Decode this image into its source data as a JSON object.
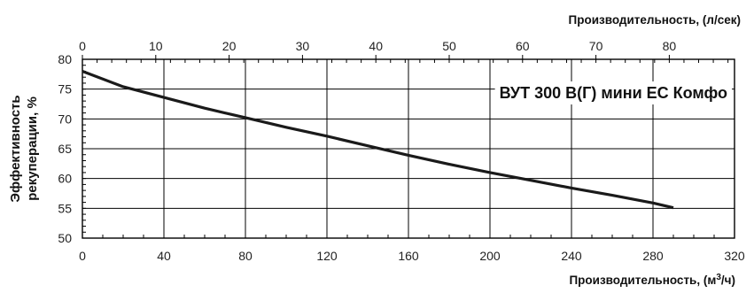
{
  "chart_data": {
    "type": "line",
    "title": "ВУТ 300 В(Г) мини ЕС Комфо",
    "xlabel_prefix": "Производительность, (м",
    "xlabel_sup": "3",
    "xlabel_suffix": "/ч)",
    "x2label": "Производительность, (л/сек)",
    "ylabel_line1": "Эффективность",
    "ylabel_line2": "рекуперации, %",
    "xlim": [
      0,
      320
    ],
    "x2lim": [
      0,
      88.89
    ],
    "ylim": [
      50,
      80
    ],
    "x_ticks": [
      "0",
      "40",
      "80",
      "120",
      "160",
      "200",
      "240",
      "280",
      "320"
    ],
    "x2_ticks": [
      "0",
      "10",
      "20",
      "30",
      "40",
      "50",
      "60",
      "70",
      "80"
    ],
    "y_ticks": [
      "50",
      "55",
      "60",
      "65",
      "70",
      "75",
      "80"
    ],
    "grid": true,
    "series": [
      {
        "x": [
          0,
          20,
          40,
          60,
          80,
          100,
          120,
          140,
          160,
          180,
          200,
          220,
          240,
          260,
          280,
          290
        ],
        "y": [
          78,
          75.4,
          73.6,
          71.8,
          70.2,
          68.6,
          67.1,
          65.5,
          63.9,
          62.4,
          61.0,
          59.7,
          58.4,
          57.2,
          55.9,
          55.1
        ],
        "color": "#1a1a1a"
      }
    ]
  }
}
